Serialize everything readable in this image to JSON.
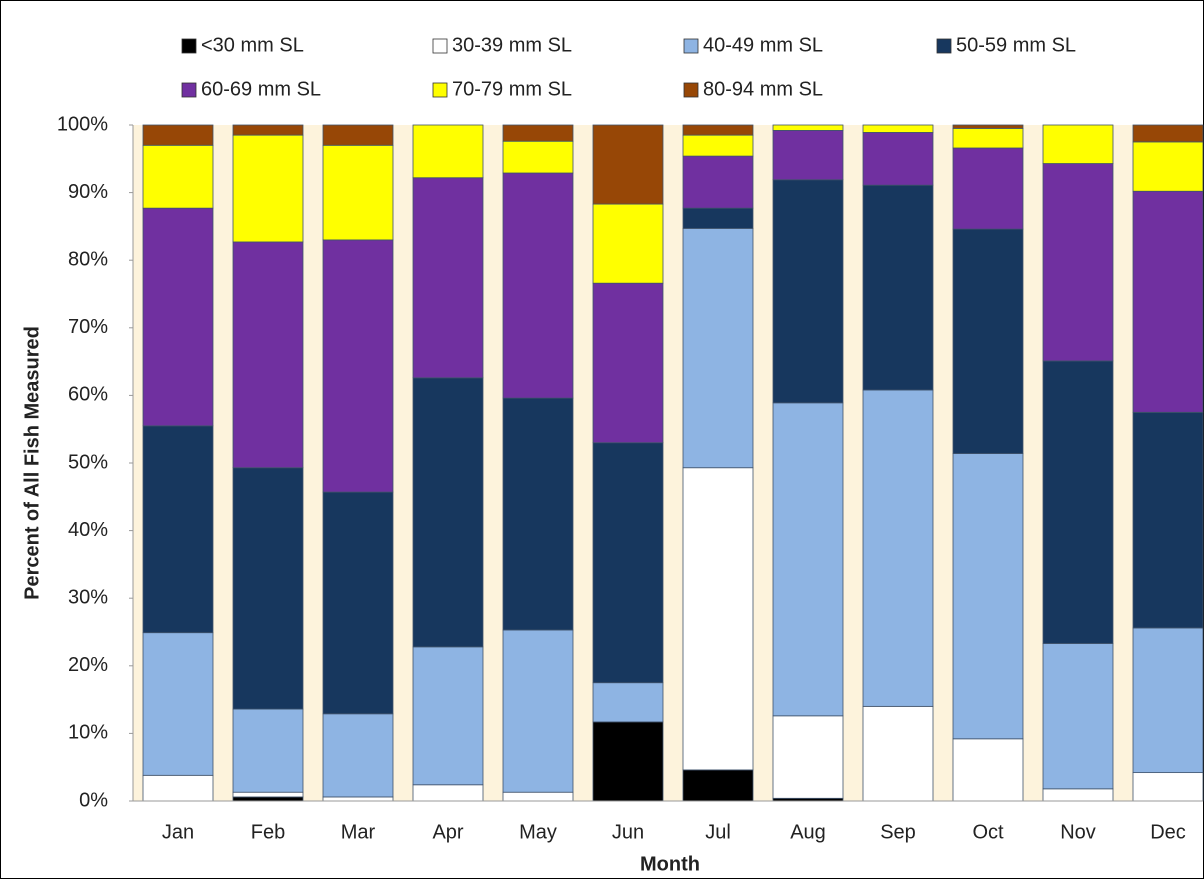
{
  "chart_data": {
    "type": "stacked_bar",
    "x_label": "Month",
    "y_label": "Percent of All Fish Measured",
    "categories": [
      "Jan",
      "Feb",
      "Mar",
      "Apr",
      "May",
      "Jun",
      "Jul",
      "Aug",
      "Sep",
      "Oct",
      "Nov",
      "Dec"
    ],
    "series": [
      {
        "name": "<30 mm SL",
        "color": "#000000",
        "values": [
          0,
          0.6,
          0,
          0,
          0,
          11.7,
          4.6,
          0.4,
          0,
          0,
          0,
          0
        ]
      },
      {
        "name": "30-39 mm SL",
        "color": "#ffffff",
        "values": [
          3.8,
          0.7,
          0.6,
          2.4,
          1.3,
          0,
          44.7,
          12.2,
          14.0,
          9.2,
          1.8,
          4.2
        ]
      },
      {
        "name": "40-49 mm SL",
        "color": "#8eb4e3",
        "values": [
          21.1,
          12.3,
          12.3,
          20.4,
          24.0,
          5.8,
          35.4,
          46.3,
          46.8,
          42.2,
          21.5,
          21.4
        ]
      },
      {
        "name": "50-59 mm SL",
        "color": "#17375e",
        "values": [
          30.6,
          35.7,
          32.8,
          39.8,
          34.3,
          35.5,
          3.0,
          33.0,
          30.3,
          33.2,
          41.8,
          31.9
        ]
      },
      {
        "name": "60-69 mm SL",
        "color": "#7030a0",
        "values": [
          32.2,
          33.4,
          37.3,
          29.6,
          33.3,
          23.6,
          7.7,
          7.3,
          7.8,
          12.0,
          29.2,
          32.7
        ]
      },
      {
        "name": "70-79 mm SL",
        "color": "#ffff00",
        "values": [
          9.3,
          15.8,
          14.0,
          7.8,
          4.7,
          11.7,
          3.1,
          0.8,
          1.1,
          2.9,
          5.7,
          7.3
        ]
      },
      {
        "name": "80-94 mm SL",
        "color": "#974706",
        "values": [
          3.0,
          1.5,
          3.0,
          0,
          2.4,
          11.7,
          1.5,
          0,
          0,
          0.5,
          0,
          2.5
        ]
      }
    ],
    "ylim": [
      0,
      100
    ],
    "yticks": [
      {
        "value": 0,
        "label": "0%"
      },
      {
        "value": 10,
        "label": "10%"
      },
      {
        "value": 20,
        "label": "20%"
      },
      {
        "value": 30,
        "label": "30%"
      },
      {
        "value": 40,
        "label": "40%"
      },
      {
        "value": 50,
        "label": "50%"
      },
      {
        "value": 60,
        "label": "60%"
      },
      {
        "value": 70,
        "label": "70%"
      },
      {
        "value": 80,
        "label": "80%"
      },
      {
        "value": 90,
        "label": "90%"
      },
      {
        "value": 100,
        "label": "100%"
      }
    ],
    "legend": "top",
    "background": "#fdf3dc"
  }
}
